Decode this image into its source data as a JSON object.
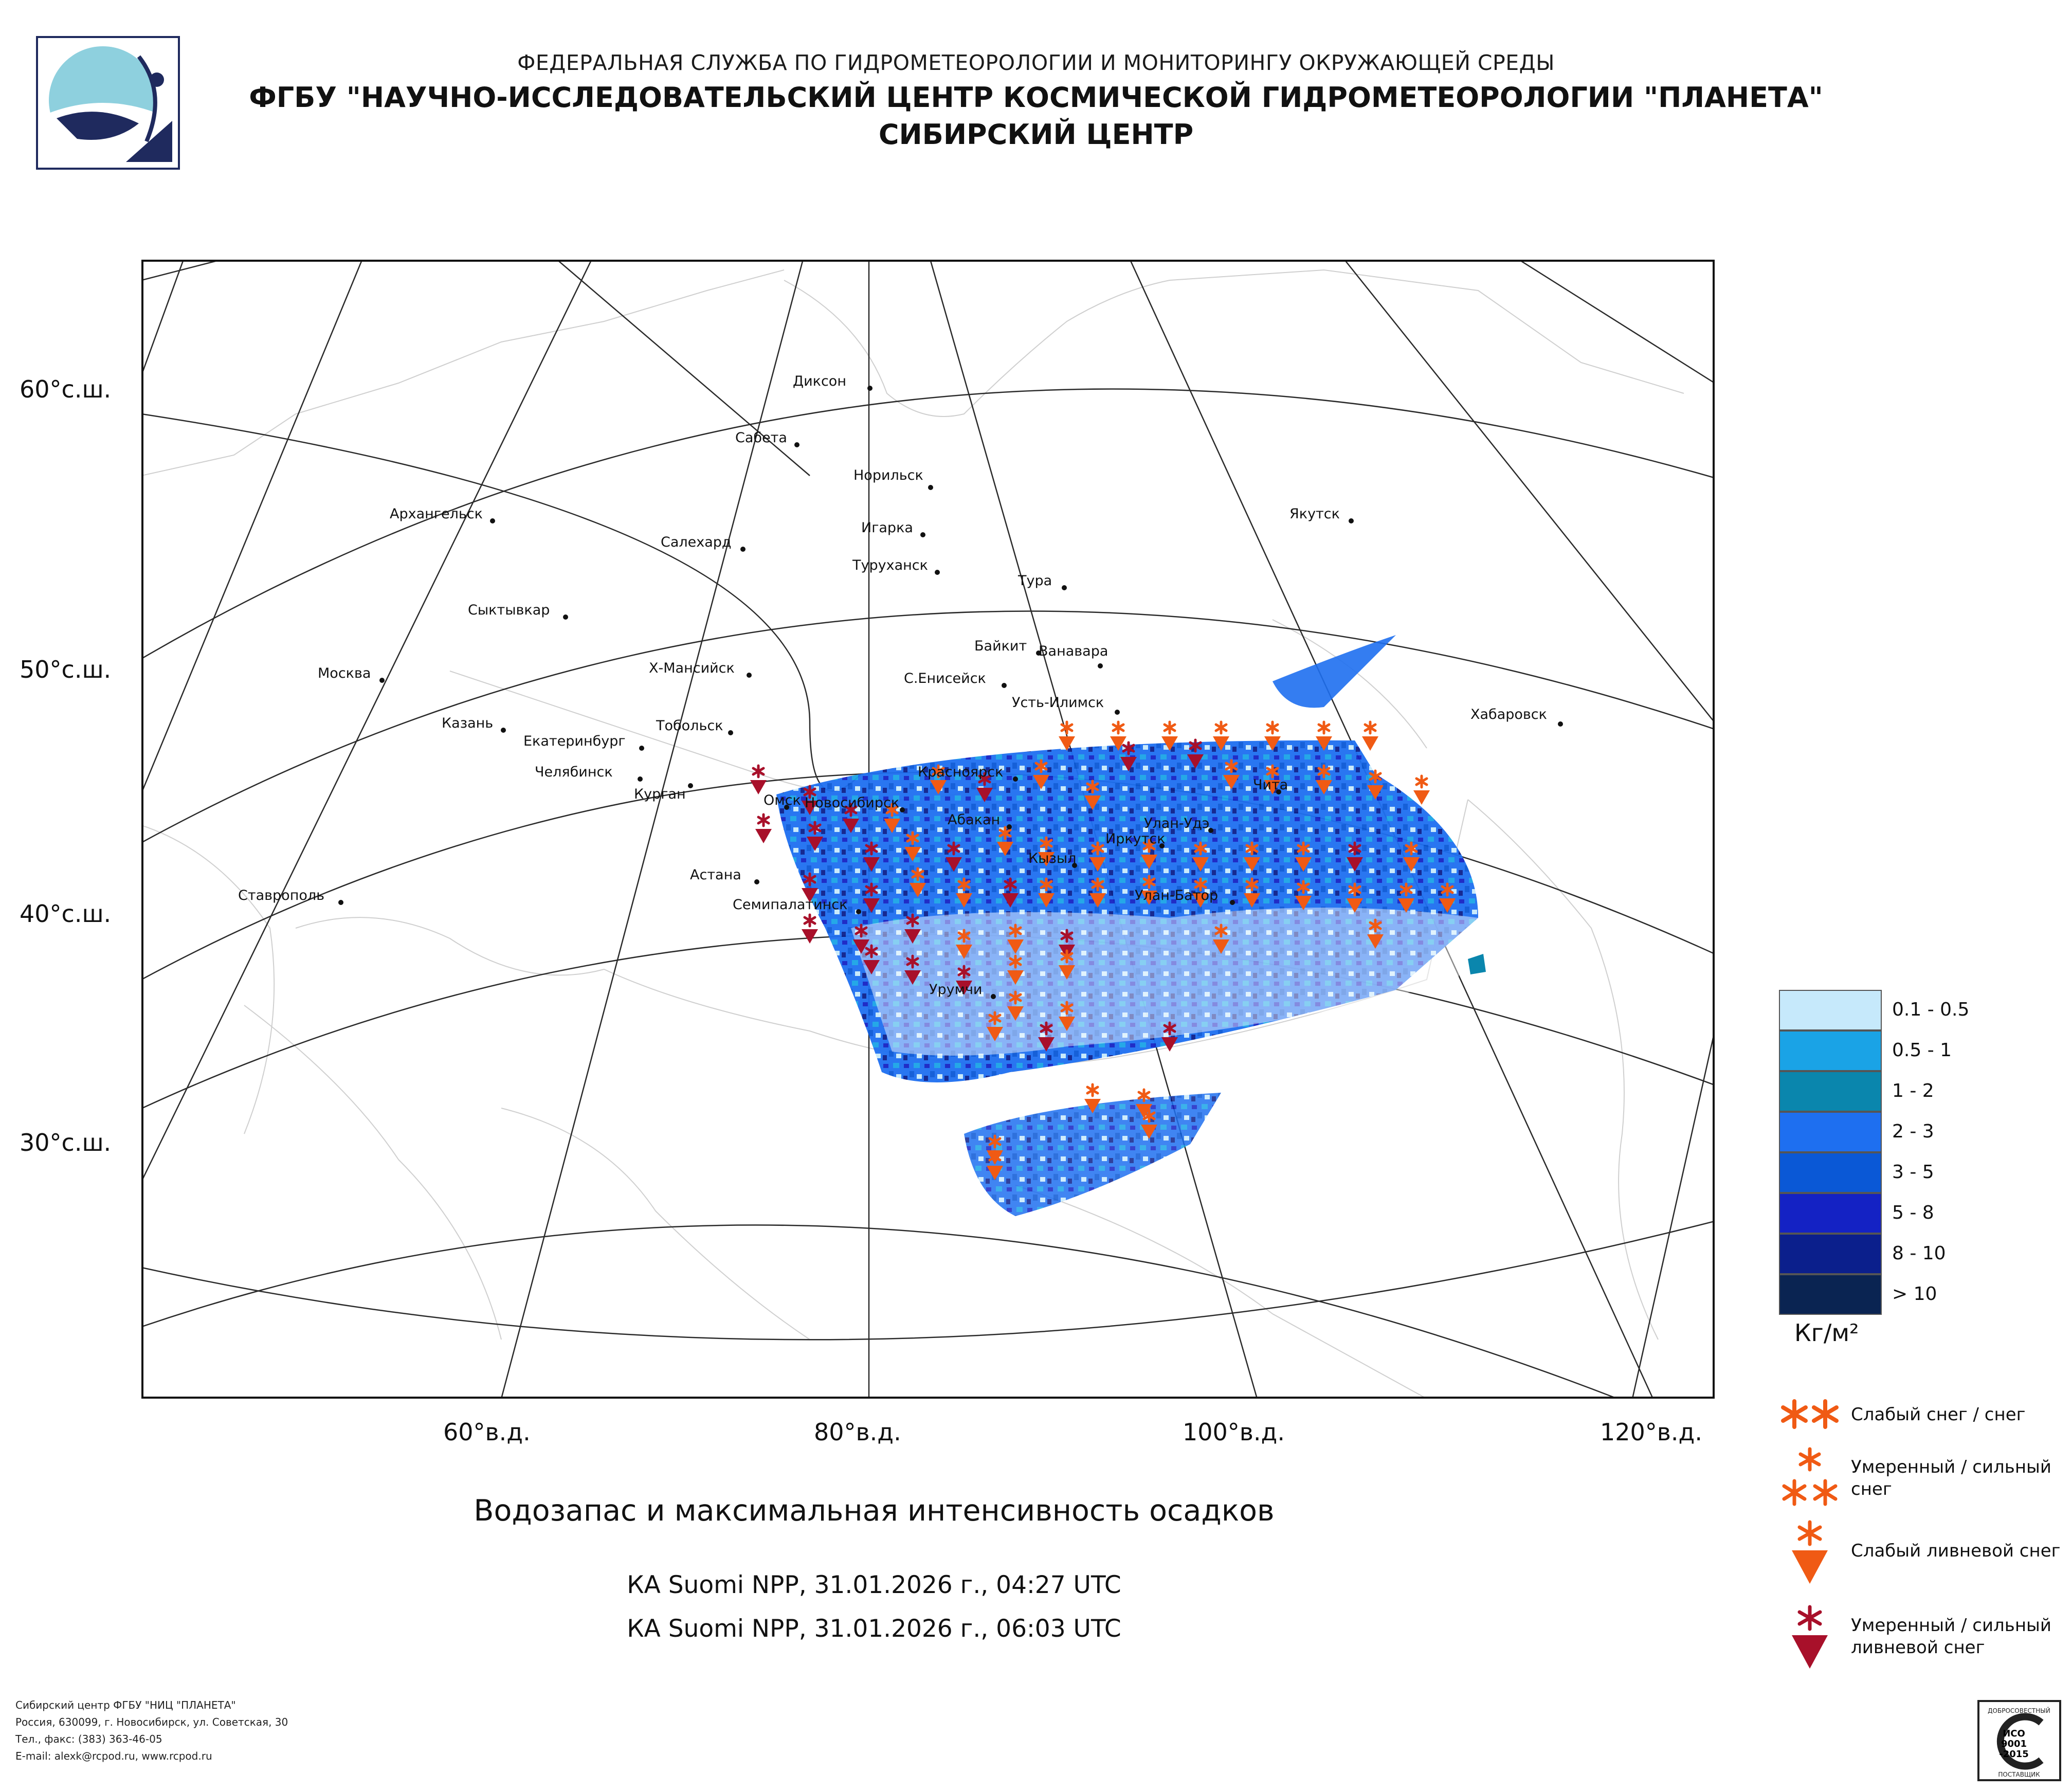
{
  "header": {
    "line1": "ФЕДЕРАЛЬНАЯ СЛУЖБА ПО ГИДРОМЕТЕОРОЛОГИИ И МОНИТОРИНГУ ОКРУЖАЮЩЕЙ СРЕДЫ",
    "line2": "ФГБУ \"НАУЧНО-ИССЛЕДОВАТЕЛЬСКИЙ ЦЕНТР КОСМИЧЕСКОЙ ГИДРОМЕТЕОРОЛОГИИ \"ПЛАНЕТА\"",
    "line3": "СИБИРСКИЙ ЦЕНТР"
  },
  "lat_labels": [
    "60°с.ш.",
    "50°с.ш.",
    "40°с.ш.",
    "30°с.ш."
  ],
  "lon_labels": [
    "60°в.д.",
    "80°в.д.",
    "100°в.д.",
    "120°в.д."
  ],
  "cities": [
    {
      "name": "Диксон"
    },
    {
      "name": "Сабета"
    },
    {
      "name": "Норильск"
    },
    {
      "name": "Архангельск"
    },
    {
      "name": "Игарка"
    },
    {
      "name": "Салехард"
    },
    {
      "name": "Туруханск"
    },
    {
      "name": "Якутск"
    },
    {
      "name": "Тура"
    },
    {
      "name": "Сыктывкар"
    },
    {
      "name": "Байкит"
    },
    {
      "name": "Ванавара"
    },
    {
      "name": "Москва"
    },
    {
      "name": "Х-Мансийск"
    },
    {
      "name": "С.Енисейск"
    },
    {
      "name": "Усть-Илимск"
    },
    {
      "name": "Хабаровск"
    },
    {
      "name": "Казань"
    },
    {
      "name": "Тобольск"
    },
    {
      "name": "Екатеринбург"
    },
    {
      "name": "Челябинск"
    },
    {
      "name": "Курган"
    },
    {
      "name": "Красноярск"
    },
    {
      "name": "Чита"
    },
    {
      "name": "Омск"
    },
    {
      "name": "Новосибирск"
    },
    {
      "name": "Абакан"
    },
    {
      "name": "Улан-Удэ"
    },
    {
      "name": "Иркутск"
    },
    {
      "name": "Кызыл"
    },
    {
      "name": "Астана"
    },
    {
      "name": "Ставрополь"
    },
    {
      "name": "Семипалатинск"
    },
    {
      "name": "Улан-Батор"
    },
    {
      "name": "Урумчи"
    }
  ],
  "map_title": "Водозапас и максимальная интенсивность осадков",
  "passes": [
    "КА Suomi NPP, 31.01.2026 г., 04:27 UTC",
    "КА Suomi NPP, 31.01.2026 г., 06:03 UTC"
  ],
  "legend": {
    "classes": [
      {
        "label": "0.1 - 0.5",
        "color": "#c6e9fb"
      },
      {
        "label": "0.5 - 1",
        "color": "#1aa3e6"
      },
      {
        "label": "1 - 2",
        "color": "#0a86ad"
      },
      {
        "label": "2 - 3",
        "color": "#1e6ff0"
      },
      {
        "label": "3 - 5",
        "color": "#0a58d6"
      },
      {
        "label": "5 - 8",
        "color": "#1422c4"
      },
      {
        "label": "8 - 10",
        "color": "#0b1f8c"
      },
      {
        "label": "> 10",
        "color": "#0a2452"
      }
    ],
    "unit": "Кг/м²",
    "symbols": [
      {
        "label": "Слабый снег / снег",
        "color": "#f05a14",
        "icon": "double-asterisk-icon"
      },
      {
        "label": "Умеренный / сильный снег",
        "color": "#f05a14",
        "icon": "triple-asterisk-icon"
      },
      {
        "label": "Слабый ливневой снег",
        "color": "#f05a14",
        "icon": "asterisk-triangle-icon"
      },
      {
        "label": "Умеренный / сильный ливневой снег",
        "color": "#a8102a",
        "icon": "dark-asterisk-triangle-icon"
      }
    ]
  },
  "footer": {
    "line1": "Сибирский центр ФГБУ \"НИЦ \"ПЛАНЕТА\"",
    "line2": "Россия, 630099, г. Новосибирск, ул. Советская, 30",
    "line3": "Тел., факс: (383) 363-46-05",
    "line4": "E-mail: alexk@rcpod.ru, www.rcpod.ru"
  },
  "iso_badge": {
    "top": "ДОБРОСОВЕСТНЫЙ",
    "text1": "ИСО",
    "text2": "9001",
    "text3": "-2015",
    "bottom": "ПОСТАВЩИК"
  }
}
